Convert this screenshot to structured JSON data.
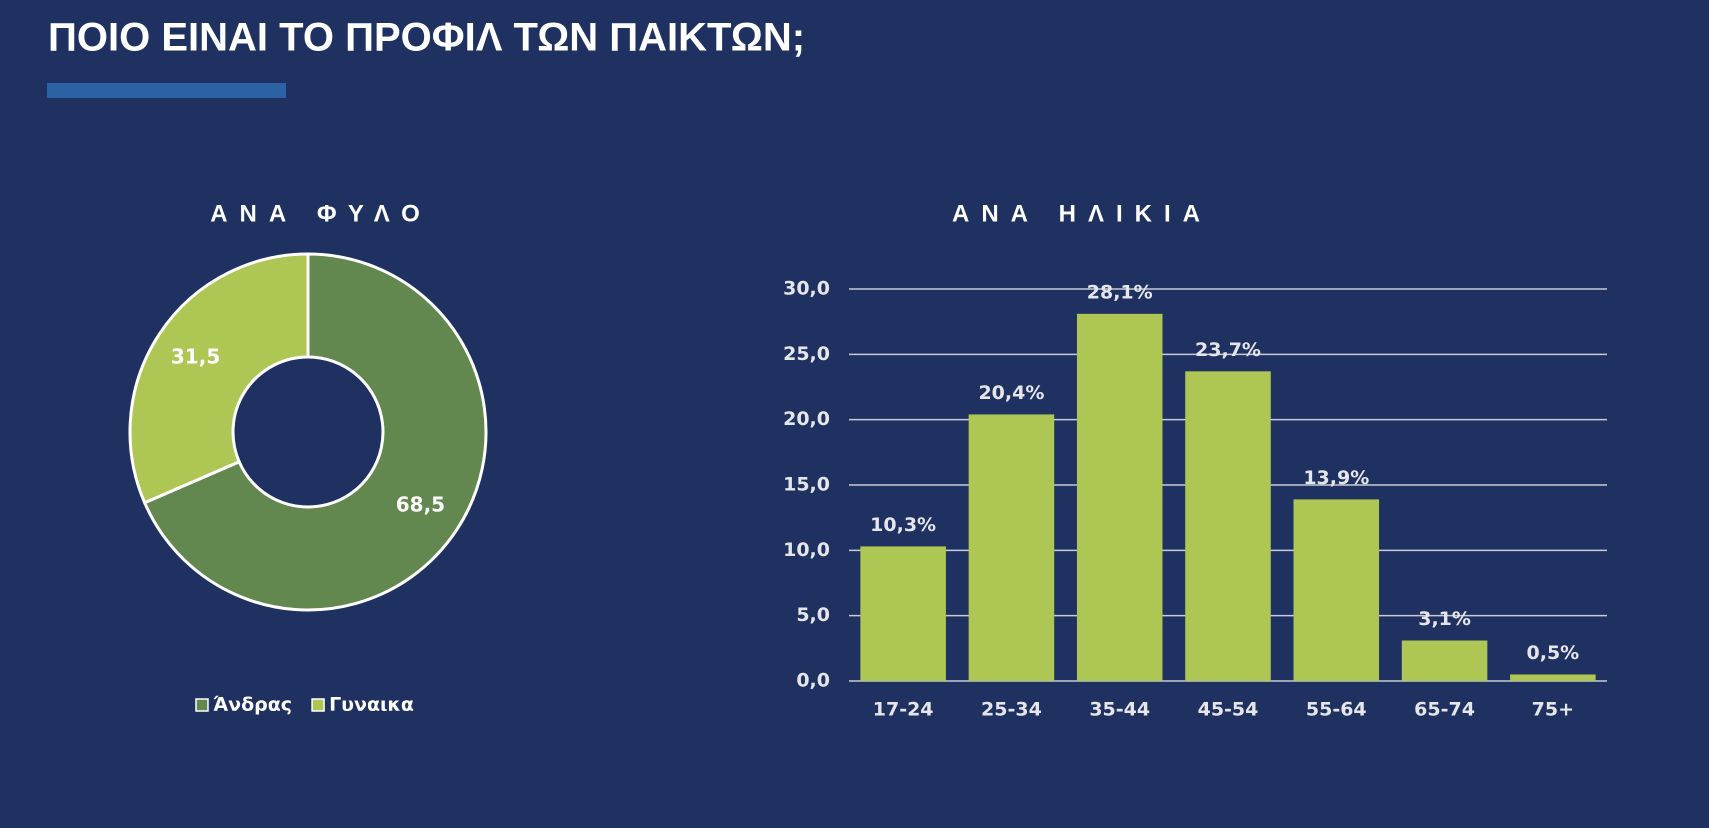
{
  "title": "ΠΟΙΟ ΕΙΝΑΙ ΤΟ ΠΡΟΦΙΛ ΤΩΝ ΠΑΙΚΤΩΝ;",
  "chart_data": [
    {
      "type": "pie",
      "title": "ΑΝΑ ΦΥΛΟ",
      "donut": true,
      "categories": [
        "Άνδρας",
        "Γυναικα"
      ],
      "values": [
        68.5,
        31.5
      ],
      "value_labels": [
        "68,5",
        "31,5"
      ],
      "colors": [
        "#62874f",
        "#aec654"
      ],
      "legend": "bottom"
    },
    {
      "type": "bar",
      "title": "ΑΝΑ ΗΛΙΚΙΑ",
      "categories": [
        "17-24",
        "25-34",
        "35-44",
        "45-54",
        "55-64",
        "65-74",
        "75+"
      ],
      "values": [
        10.3,
        20.4,
        28.1,
        23.7,
        13.9,
        3.1,
        0.5
      ],
      "value_labels": [
        "10,3%",
        "20,4%",
        "28,1%",
        "23,7%",
        "13,9%",
        "3,1%",
        "0,5%"
      ],
      "color": "#aec654",
      "ylim": [
        0,
        30
      ],
      "yticks": [
        {
          "value": 0,
          "label": "0,0"
        },
        {
          "value": 5,
          "label": "5,0"
        },
        {
          "value": 10,
          "label": "10,0"
        },
        {
          "value": 15,
          "label": "15,0"
        },
        {
          "value": 20,
          "label": "20,0"
        },
        {
          "value": 25,
          "label": "25,0"
        },
        {
          "value": 30,
          "label": "30,0"
        }
      ],
      "grid": true
    }
  ]
}
